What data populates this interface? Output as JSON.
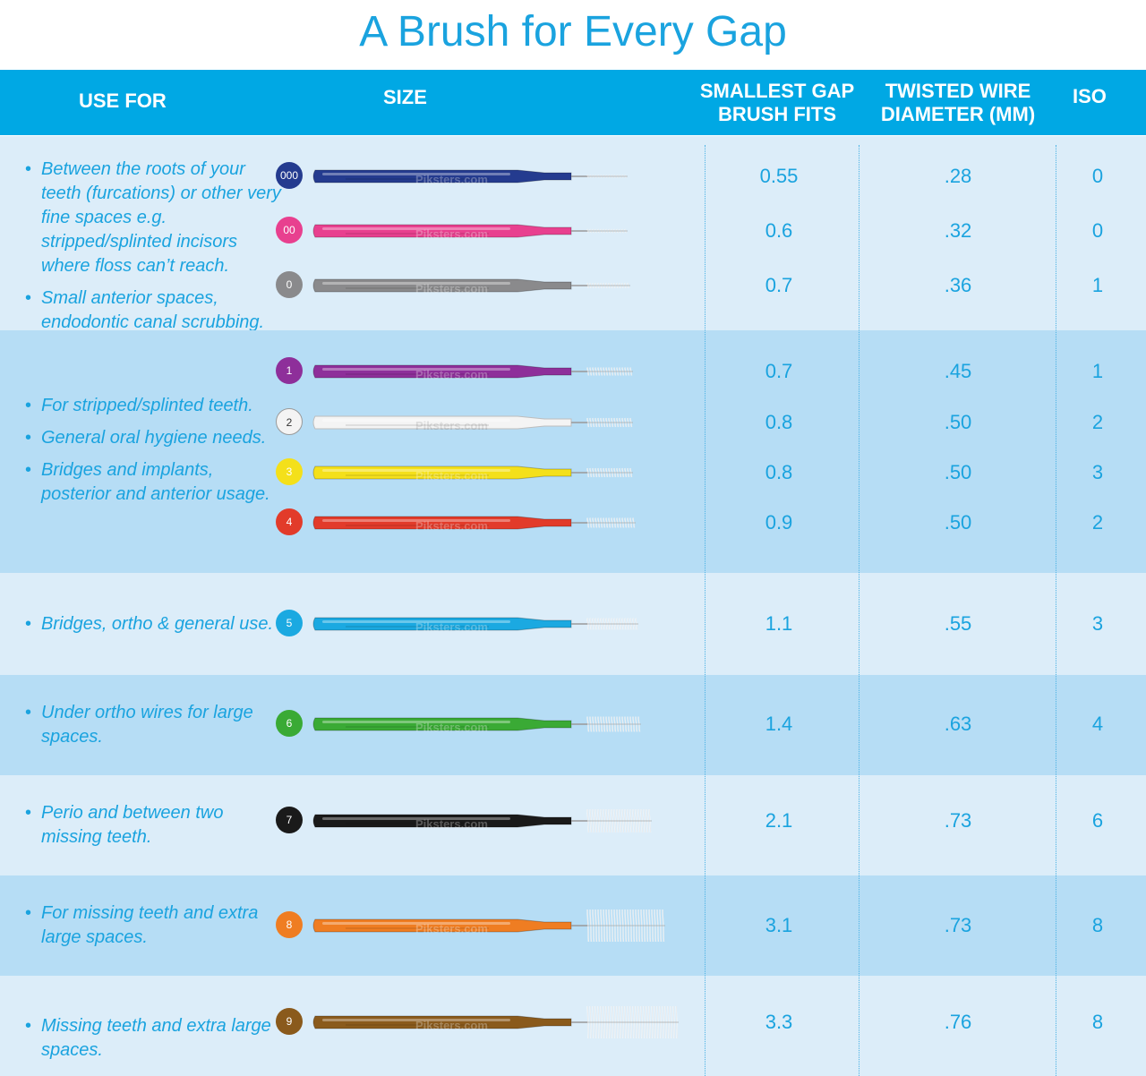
{
  "title": "A Brush for Every Gap",
  "headers": {
    "use_for": "USE FOR",
    "size": "SIZE",
    "gap_line1": "SMALLEST GAP",
    "gap_line2": "BRUSH FITS",
    "wire_line1": "TWISTED WIRE",
    "wire_line2": "DIAMETER (MM)",
    "iso": "ISO"
  },
  "brand": "Piksters.com",
  "groups": [
    {
      "uses": [
        "Between the roots of your teeth (furcations) or other very fine spaces e.g. stripped/splinted incisors where floss can’t reach.",
        "Small anterior spaces, endodontic canal scrubbing."
      ],
      "rows": [
        {
          "size": "000",
          "gap": "0.55",
          "wire": ".28",
          "iso": "0",
          "color": "#243b8f",
          "bristle": 3
        },
        {
          "size": "00",
          "gap": "0.6",
          "wire": ".32",
          "iso": "0",
          "color": "#e8408f",
          "bristle": 4
        },
        {
          "size": "0",
          "gap": "0.7",
          "wire": ".36",
          "iso": "1",
          "color": "#8a8a8c",
          "bristle": 6
        }
      ]
    },
    {
      "uses": [
        "For stripped/splinted teeth.",
        "General oral hygiene needs.",
        "Bridges and implants, posterior and anterior usage."
      ],
      "rows": [
        {
          "size": "1",
          "gap": "0.7",
          "wire": ".45",
          "iso": "1",
          "color": "#8e2f9a",
          "bristle": 9
        },
        {
          "size": "2",
          "gap": "0.8",
          "wire": ".50",
          "iso": "2",
          "color": "#f4f4f4",
          "bristle": 10
        },
        {
          "size": "3",
          "gap": "0.8",
          "wire": ".50",
          "iso": "3",
          "color": "#f4e01a",
          "bristle": 10
        },
        {
          "size": "4",
          "gap": "0.9",
          "wire": ".50",
          "iso": "2",
          "color": "#e23b2a",
          "bristle": 11
        }
      ]
    },
    {
      "uses": [
        "Bridges, ortho & general use."
      ],
      "rows": [
        {
          "size": "5",
          "gap": "1.1",
          "wire": ".55",
          "iso": "3",
          "color": "#1ba9e1",
          "bristle": 13
        }
      ]
    },
    {
      "uses": [
        "Under ortho wires for large spaces."
      ],
      "rows": [
        {
          "size": "6",
          "gap": "1.4",
          "wire": ".63",
          "iso": "4",
          "color": "#3aaa35",
          "bristle": 17
        }
      ]
    },
    {
      "uses": [
        "Perio and between two missing teeth."
      ],
      "rows": [
        {
          "size": "7",
          "gap": "2.1",
          "wire": ".73",
          "iso": "6",
          "color": "#1a1a1a",
          "bristle": 26
        }
      ]
    },
    {
      "uses": [
        "For missing teeth and extra large spaces."
      ],
      "rows": [
        {
          "size": "8",
          "gap": "3.1",
          "wire": ".73",
          "iso": "8",
          "color": "#ef7d22",
          "bristle": 40
        }
      ]
    },
    {
      "uses": [
        "Missing teeth and extra large spaces."
      ],
      "rows": [
        {
          "size": "9",
          "gap": "3.3",
          "wire": ".76",
          "iso": "8",
          "color": "#8a5a1c",
          "bristle": 52
        }
      ]
    }
  ]
}
